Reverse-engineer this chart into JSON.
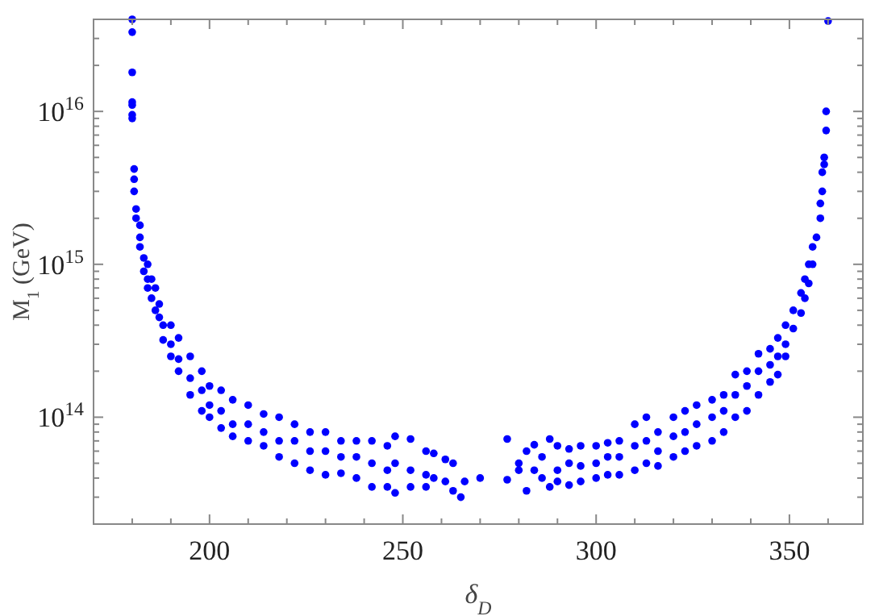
{
  "chart_data": {
    "type": "scatter",
    "xlabel": "δ$_{D}$",
    "ylabel": "M$_{1}$ (GeV)",
    "log": "y",
    "grid": false,
    "marker": "circle",
    "xlim": [
      170,
      369
    ],
    "ylim": [
      20000000000000.0,
      4e+16
    ],
    "xticks": [
      {
        "value": 180,
        "label": null
      },
      {
        "value": 190,
        "label": null
      },
      200,
      {
        "value": 210,
        "label": null
      },
      {
        "value": 220,
        "label": null
      },
      {
        "value": 230,
        "label": null
      },
      {
        "value": 240,
        "label": null
      },
      250,
      {
        "value": 260,
        "label": null
      },
      {
        "value": 270,
        "label": null
      },
      {
        "value": 280,
        "label": null
      },
      {
        "value": 290,
        "label": null
      },
      300,
      {
        "value": 310,
        "label": null
      },
      {
        "value": 320,
        "label": null
      },
      {
        "value": 330,
        "label": null
      },
      {
        "value": 340,
        "label": null
      },
      350,
      {
        "value": 360,
        "label": null
      }
    ],
    "yticks": [
      {
        "value": 20000000000000.0,
        "label": null
      },
      {
        "value": 30000000000000.0,
        "label": null
      },
      {
        "value": 40000000000000.0,
        "label": null
      },
      {
        "value": 50000000000000.0,
        "label": null
      },
      {
        "value": 60000000000000.0,
        "label": null
      },
      {
        "value": 70000000000000.0,
        "label": null
      },
      {
        "value": 80000000000000.0,
        "label": null
      },
      {
        "value": 90000000000000.0,
        "label": null
      },
      {
        "value": 100000000000000.0,
        "label": "10$^{14}$"
      },
      {
        "value": 200000000000000.0,
        "label": null
      },
      {
        "value": 300000000000000.0,
        "label": null
      },
      {
        "value": 400000000000000.0,
        "label": null
      },
      {
        "value": 500000000000000.0,
        "label": null
      },
      {
        "value": 600000000000000.0,
        "label": null
      },
      {
        "value": 700000000000000.0,
        "label": null
      },
      {
        "value": 800000000000000.0,
        "label": null
      },
      {
        "value": 900000000000000.0,
        "label": null
      },
      {
        "value": 1000000000000000.0,
        "label": "10$^{15}$"
      },
      {
        "value": 2000000000000000.0,
        "label": null
      },
      {
        "value": 3000000000000000.0,
        "label": null
      },
      {
        "value": 4000000000000000.0,
        "label": null
      },
      {
        "value": 5000000000000000.0,
        "label": null
      },
      {
        "value": 6000000000000000.0,
        "label": null
      },
      {
        "value": 7000000000000000.0,
        "label": null
      },
      {
        "value": 8000000000000000.0,
        "label": null
      },
      {
        "value": 9000000000000000.0,
        "label": null
      },
      {
        "value": 1e+16,
        "label": "10$^{16}$"
      },
      {
        "value": 2e+16,
        "label": null
      },
      {
        "value": 3e+16,
        "label": null
      },
      {
        "value": 4e+16,
        "label": null
      }
    ],
    "series": [
      {
        "color": "#0000ff",
        "x": [
          180,
          180,
          180,
          180,
          180,
          180,
          180,
          180.5,
          180.5,
          180.5,
          181,
          181,
          182,
          182,
          182,
          183,
          183,
          184,
          184,
          184,
          185,
          185,
          186,
          186,
          187,
          187,
          188,
          188,
          190,
          190,
          190,
          192,
          192,
          192,
          195,
          195,
          195,
          198,
          198,
          198,
          200,
          200,
          200,
          203,
          203,
          203,
          206,
          206,
          206,
          210,
          210,
          210,
          214,
          214,
          214,
          218,
          218,
          218,
          222,
          222,
          222,
          226,
          226,
          226,
          230,
          230,
          230,
          234,
          234,
          234,
          238,
          238,
          238,
          242,
          242,
          242,
          246,
          246,
          246,
          248,
          248,
          248,
          252,
          252,
          252,
          256,
          256,
          256,
          258,
          258,
          261,
          261,
          263,
          263,
          265,
          266,
          270,
          277,
          277,
          280,
          280,
          282,
          282,
          284,
          284,
          286,
          286,
          288,
          288,
          290,
          290,
          290,
          293,
          293,
          293,
          296,
          296,
          296,
          300,
          300,
          300,
          303,
          303,
          303,
          306,
          306,
          306,
          310,
          310,
          310,
          313,
          313,
          313,
          316,
          316,
          316,
          320,
          320,
          320,
          323,
          323,
          323,
          326,
          326,
          326,
          330,
          330,
          330,
          333,
          333,
          333,
          336,
          336,
          336,
          339,
          339,
          339,
          342,
          342,
          342,
          345,
          345,
          345,
          347,
          347,
          347,
          349,
          349,
          349,
          351,
          351,
          353,
          353,
          354,
          354,
          355,
          355,
          356,
          356,
          357,
          358,
          358,
          358.5,
          358.5,
          359,
          359,
          359.5,
          359.5,
          360
        ],
        "values": [
          4e+16,
          3.3e+16,
          1.8e+16,
          1.15e+16,
          1.1e+16,
          9500000000000000.0,
          9000000000000000.0,
          4200000000000000.0,
          3600000000000000.0,
          3000000000000000.0,
          2300000000000000.0,
          2000000000000000.0,
          1800000000000000.0,
          1500000000000000.0,
          1300000000000000.0,
          1100000000000000.0,
          900000000000000.0,
          1000000000000000.0,
          800000000000000.0,
          700000000000000.0,
          800000000000000.0,
          600000000000000.0,
          700000000000000.0,
          500000000000000.0,
          550000000000000.0,
          450000000000000.0,
          400000000000000.0,
          320000000000000.0,
          400000000000000.0,
          300000000000000.0,
          250000000000000.0,
          330000000000000.0,
          240000000000000.0,
          200000000000000.0,
          250000000000000.0,
          180000000000000.0,
          140000000000000.0,
          200000000000000.0,
          150000000000000.0,
          110000000000000.0,
          160000000000000.0,
          120000000000000.0,
          100000000000000.0,
          150000000000000.0,
          110000000000000.0,
          85000000000000.0,
          130000000000000.0,
          90000000000000.0,
          75000000000000.0,
          120000000000000.0,
          90000000000000.0,
          70000000000000.0,
          105000000000000.0,
          80000000000000.0,
          65000000000000.0,
          100000000000000.0,
          70000000000000.0,
          55000000000000.0,
          90000000000000.0,
          70000000000000.0,
          50000000000000.0,
          80000000000000.0,
          60000000000000.0,
          45000000000000.0,
          80000000000000.0,
          60000000000000.0,
          42000000000000.0,
          70000000000000.0,
          55000000000000.0,
          43000000000000.0,
          70000000000000.0,
          55000000000000.0,
          40000000000000.0,
          70000000000000.0,
          50000000000000.0,
          35000000000000.0,
          65000000000000.0,
          45000000000000.0,
          35000000000000.0,
          75000000000000.0,
          50000000000000.0,
          32000000000000.0,
          72000000000000.0,
          45000000000000.0,
          35000000000000.0,
          60000000000000.0,
          42000000000000.0,
          35000000000000.0,
          58000000000000.0,
          40000000000000.0,
          53000000000000.0,
          38000000000000.0,
          50000000000000.0,
          33000000000000.0,
          30000000000000.0,
          38000000000000.0,
          40000000000000.0,
          72000000000000.0,
          39000000000000.0,
          50000000000000.0,
          45000000000000.0,
          60000000000000.0,
          33000000000000.0,
          66000000000000.0,
          45000000000000.0,
          55000000000000.0,
          40000000000000.0,
          72000000000000.0,
          35000000000000.0,
          65000000000000.0,
          45000000000000.0,
          38000000000000.0,
          62000000000000.0,
          50000000000000.0,
          36000000000000.0,
          65000000000000.0,
          48000000000000.0,
          38000000000000.0,
          65000000000000.0,
          50000000000000.0,
          40000000000000.0,
          68000000000000.0,
          55000000000000.0,
          42000000000000.0,
          70000000000000.0,
          55000000000000.0,
          42000000000000.0,
          90000000000000.0,
          65000000000000.0,
          45000000000000.0,
          100000000000000.0,
          70000000000000.0,
          50000000000000.0,
          80000000000000.0,
          60000000000000.0,
          48000000000000.0,
          100000000000000.0,
          75000000000000.0,
          55000000000000.0,
          110000000000000.0,
          80000000000000.0,
          60000000000000.0,
          120000000000000.0,
          90000000000000.0,
          65000000000000.0,
          130000000000000.0,
          100000000000000.0,
          70000000000000.0,
          140000000000000.0,
          110000000000000.0,
          80000000000000.0,
          190000000000000.0,
          140000000000000.0,
          100000000000000.0,
          200000000000000.0,
          160000000000000.0,
          110000000000000.0,
          260000000000000.0,
          200000000000000.0,
          140000000000000.0,
          280000000000000.0,
          220000000000000.0,
          170000000000000.0,
          330000000000000.0,
          250000000000000.0,
          190000000000000.0,
          400000000000000.0,
          300000000000000.0,
          250000000000000.0,
          500000000000000.0,
          380000000000000.0,
          650000000000000.0,
          480000000000000.0,
          800000000000000.0,
          600000000000000.0,
          1000000000000000.0,
          750000000000000.0,
          1300000000000000.0,
          1000000000000000.0,
          1500000000000000.0,
          2000000000000000.0,
          2500000000000000.0,
          3000000000000000.0,
          4000000000000000.0,
          4500000000000000.0,
          5000000000000000.0,
          7500000000000000.0,
          1e+16,
          3.9e+16
        ]
      }
    ]
  }
}
